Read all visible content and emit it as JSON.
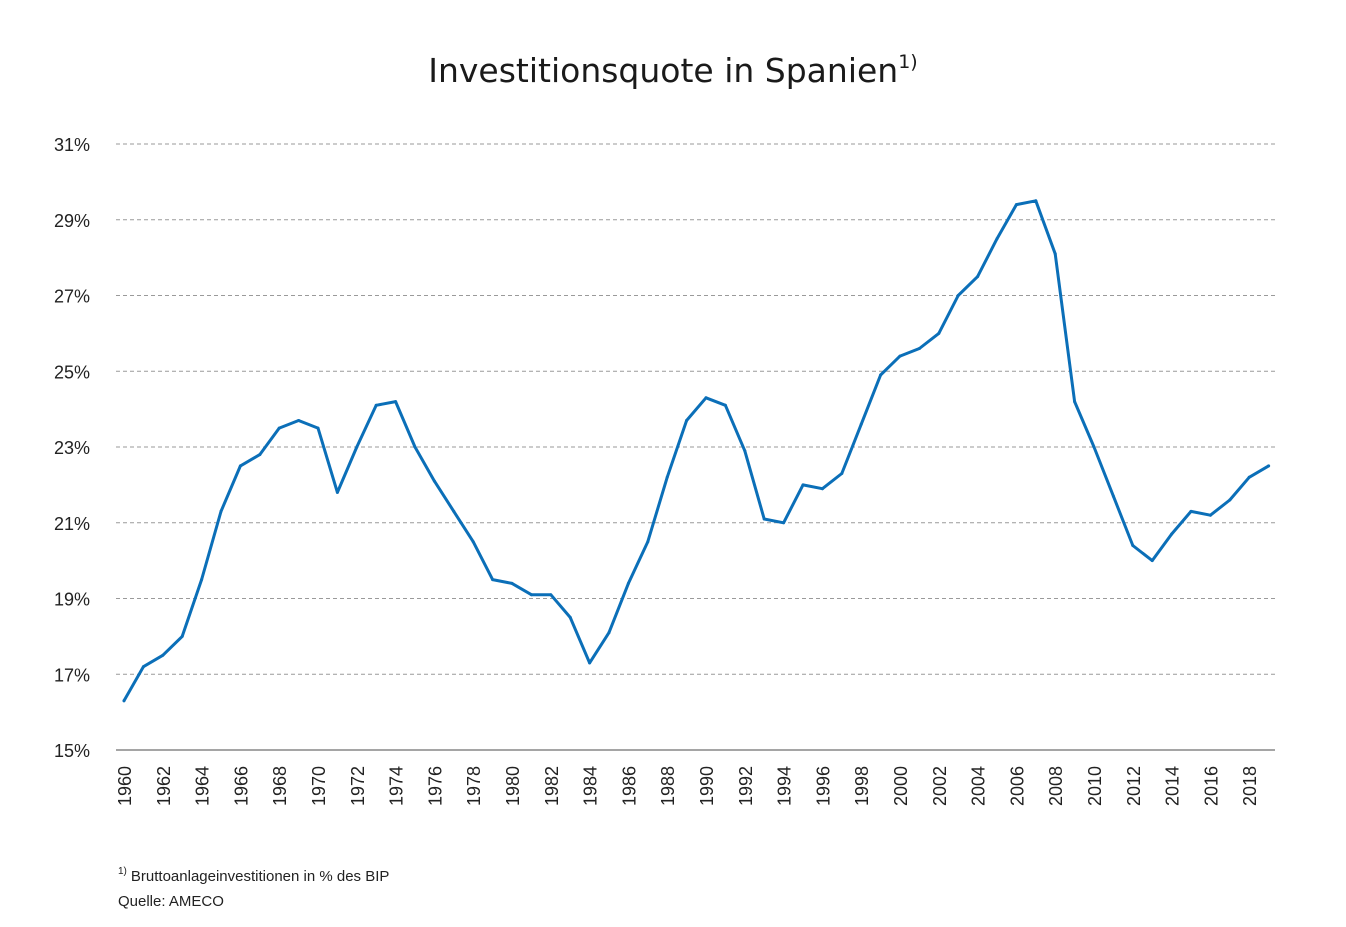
{
  "colors": {
    "line": "#0b6fb8",
    "grid": "#9a9a9a"
  },
  "chart_data": {
    "type": "line",
    "title": "Investitionsquote in Spanien",
    "title_superscript": "1)",
    "xlabel": "",
    "ylabel": "",
    "ylim": [
      15,
      31
    ],
    "yticks": [
      15,
      17,
      19,
      21,
      23,
      25,
      27,
      29,
      31
    ],
    "ytick_labels": [
      "15%",
      "17%",
      "19%",
      "21%",
      "23%",
      "25%",
      "27%",
      "29%",
      "31%"
    ],
    "xticks": [
      "1960",
      "1962",
      "1964",
      "1966",
      "1968",
      "1970",
      "1972",
      "1974",
      "1976",
      "1978",
      "1980",
      "1982",
      "1984",
      "1986",
      "1988",
      "1990",
      "1992",
      "1994",
      "1996",
      "1998",
      "2000",
      "2002",
      "2004",
      "2006",
      "2008",
      "2010",
      "2012",
      "2014",
      "2016",
      "2018"
    ],
    "grid": true,
    "legend": "none",
    "x": [
      1960,
      1961,
      1962,
      1963,
      1964,
      1965,
      1966,
      1967,
      1968,
      1969,
      1970,
      1971,
      1972,
      1973,
      1974,
      1975,
      1976,
      1977,
      1978,
      1979,
      1980,
      1981,
      1982,
      1983,
      1984,
      1985,
      1986,
      1987,
      1988,
      1989,
      1990,
      1991,
      1992,
      1993,
      1994,
      1995,
      1996,
      1997,
      1998,
      1999,
      2000,
      2001,
      2002,
      2003,
      2004,
      2005,
      2006,
      2007,
      2008,
      2009,
      2010,
      2011,
      2012,
      2013,
      2014,
      2015,
      2016,
      2017,
      2018,
      2019
    ],
    "series": [
      {
        "values": [
          16.3,
          17.2,
          17.5,
          18.0,
          19.5,
          21.3,
          22.5,
          22.8,
          23.5,
          23.7,
          23.5,
          21.8,
          23.0,
          24.1,
          24.2,
          23.0,
          22.1,
          21.3,
          20.5,
          19.5,
          19.4,
          19.1,
          19.1,
          18.5,
          17.3,
          18.1,
          19.4,
          20.5,
          22.2,
          23.7,
          24.3,
          24.1,
          22.9,
          21.1,
          21.0,
          22.0,
          21.9,
          22.3,
          23.6,
          24.9,
          25.4,
          25.6,
          26.0,
          27.0,
          27.5,
          28.5,
          29.4,
          29.5,
          28.1,
          24.2,
          23.0,
          21.7,
          20.4,
          20.0,
          20.7,
          21.3,
          21.2,
          21.6,
          22.2,
          22.5
        ]
      }
    ]
  },
  "footnote": {
    "marker": "1)",
    "text": "Bruttoanlageinvestitionen in % des BIP",
    "source": "Quelle: AMECO"
  }
}
